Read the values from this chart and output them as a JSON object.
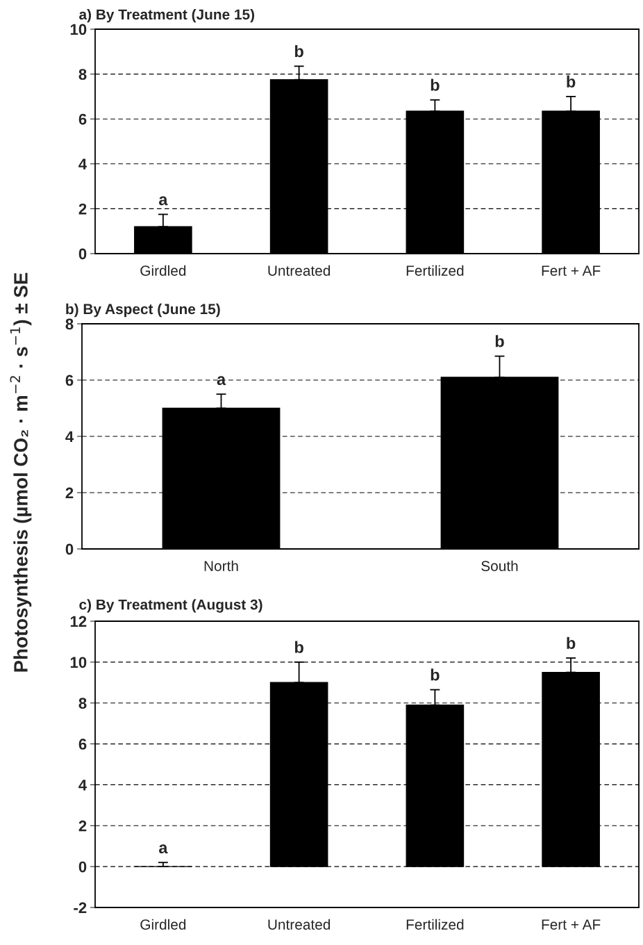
{
  "chart_data": [
    {
      "type": "bar",
      "title": "a) By Treatment (June 15)",
      "categories": [
        "Girdled",
        "Untreated",
        "Fertilized",
        "Fert + AF"
      ],
      "values": [
        1.2,
        7.75,
        6.35,
        6.35
      ],
      "errors": [
        [
          1.2,
          1.75
        ],
        [
          7.75,
          8.35
        ],
        [
          6.35,
          6.85
        ],
        [
          6.35,
          7.0
        ]
      ],
      "color": "#000000",
      "ylim": [
        0,
        10
      ],
      "yticks": [
        0,
        2,
        4,
        6,
        8,
        10
      ],
      "grid": "y",
      "line_style": "dashed",
      "annotations": [
        "a",
        "b",
        "b",
        "b"
      ]
    },
    {
      "type": "bar",
      "title": "b) By Aspect (June 15)",
      "ylabel": "Photosynthesis (µmol CO₂ · m$^{−2}$ · s$^{−1}$) ± SE",
      "categories": [
        "North",
        "South"
      ],
      "values": [
        5.0,
        6.1
      ],
      "errors": [
        [
          5.0,
          5.5
        ],
        [
          6.1,
          6.85
        ]
      ],
      "color": "#000000",
      "ylim": [
        0,
        8
      ],
      "yticks": [
        0,
        2,
        4,
        6,
        8
      ],
      "grid": "y",
      "line_style": "dashed",
      "annotations": [
        "a",
        "b"
      ]
    },
    {
      "type": "bar",
      "title": "c) By Treatment (August 3)",
      "categories": [
        "Girdled",
        "Untreated",
        "Fertilized",
        "Fert + AF"
      ],
      "values": [
        0.0,
        9.0,
        7.9,
        9.5
      ],
      "errors": [
        [
          0.0,
          0.2
        ],
        [
          9.0,
          10.0
        ],
        [
          7.9,
          8.65
        ],
        [
          9.5,
          10.2
        ]
      ],
      "color": "#000000",
      "ylim": [
        -2,
        12
      ],
      "yticks": [
        -2,
        0,
        2,
        4,
        6,
        8,
        10,
        12
      ],
      "grid": "y",
      "line_style": "dashed",
      "annotations": [
        "a",
        "b",
        "b",
        "b"
      ]
    }
  ]
}
